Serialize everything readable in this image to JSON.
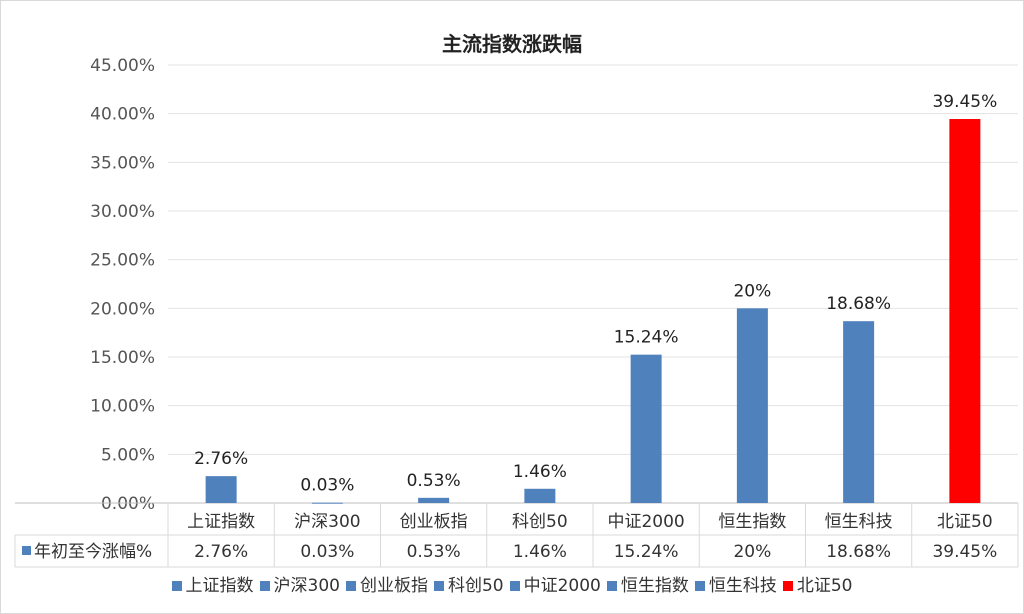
{
  "chart_data": {
    "type": "bar",
    "title": "主流指数涨跌幅",
    "categories": [
      "上证指数",
      "沪深300",
      "创业板指",
      "科创50",
      "中证2000",
      "恒生指数",
      "恒生科技",
      "北证50"
    ],
    "series": [
      {
        "name": "年初至今涨幅%",
        "values": [
          2.76,
          0.03,
          0.53,
          1.46,
          15.24,
          20,
          18.68,
          39.45
        ],
        "labels": [
          "2.76%",
          "0.03%",
          "0.53%",
          "1.46%",
          "15.24%",
          "20%",
          "18.68%",
          "39.45%"
        ]
      }
    ],
    "y_ticks": [
      "0.00%",
      "5.00%",
      "10.00%",
      "15.00%",
      "20.00%",
      "25.00%",
      "30.00%",
      "35.00%",
      "40.00%",
      "45.00%"
    ],
    "ylim": [
      0,
      45
    ],
    "grid": true,
    "data_table": true,
    "legend_position": "bottom",
    "colors": {
      "default": "#4f81bd",
      "highlight": "#ff0000",
      "highlight_label": "#ff0000"
    },
    "highlight_index": 7
  }
}
